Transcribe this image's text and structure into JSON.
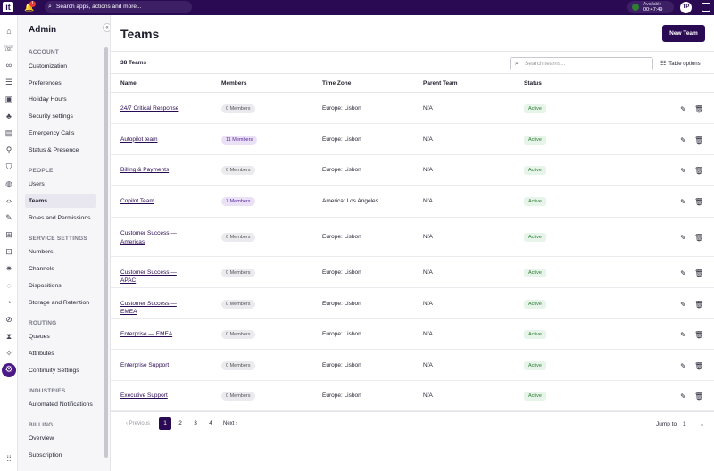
{
  "topbar": {
    "logo": "it",
    "notification_count": "1",
    "search_placeholder": "Search apps, actions and more...",
    "status_label": "Available",
    "status_time": "00:47:49",
    "avatar_initials": "TP"
  },
  "sidebar": {
    "title": "Admin",
    "sections": [
      {
        "label": "ACCOUNT",
        "items": [
          "Customization",
          "Preferences",
          "Holiday Hours",
          "Security settings",
          "Emergency Calls",
          "Status & Presence"
        ]
      },
      {
        "label": "PEOPLE",
        "items": [
          "Users",
          "Teams",
          "Roles and Permissions"
        ]
      },
      {
        "label": "SERVICE SETTINGS",
        "items": [
          "Numbers",
          "Channels",
          "Dispositions",
          "Storage and Retention"
        ]
      },
      {
        "label": "ROUTING",
        "items": [
          "Queues",
          "Attributes",
          "Continuity Settings"
        ]
      },
      {
        "label": "INDUSTRIES",
        "items": [
          "Automated Notifications"
        ]
      },
      {
        "label": "BILLING",
        "items": [
          "Overview",
          "Subscription"
        ]
      }
    ],
    "active_item": "Teams"
  },
  "main": {
    "title": "Teams",
    "new_team_label": "New Team",
    "team_count": "38 Teams",
    "search_placeholder": "Search teams...",
    "table_options_label": "Table options",
    "columns": [
      "Name",
      "Members",
      "Time Zone",
      "Parent Team",
      "Status"
    ],
    "rows": [
      {
        "name": "24/7 Critical Response",
        "members": "0 Members",
        "members_highlight": false,
        "timezone": "Europe: Lisbon",
        "parent": "N/A",
        "status": "Active"
      },
      {
        "name": "Autopilot team",
        "members": "11 Members",
        "members_highlight": true,
        "timezone": "Europe: Lisbon",
        "parent": "N/A",
        "status": "Active"
      },
      {
        "name": "Billing & Payments",
        "members": "0 Members",
        "members_highlight": false,
        "timezone": "Europe: Lisbon",
        "parent": "N/A",
        "status": "Active"
      },
      {
        "name": "Copilot Team",
        "members": "7 Members",
        "members_highlight": true,
        "timezone": "America: Los Angeles",
        "parent": "N/A",
        "status": "Active"
      },
      {
        "name": "Customer Success — Americas",
        "members": "0 Members",
        "members_highlight": false,
        "timezone": "Europe: Lisbon",
        "parent": "N/A",
        "status": "Active"
      },
      {
        "name": "Customer Success — APAC",
        "members": "0 Members",
        "members_highlight": false,
        "timezone": "Europe: Lisbon",
        "parent": "N/A",
        "status": "Active"
      },
      {
        "name": "Customer Success — EMEA",
        "members": "0 Members",
        "members_highlight": false,
        "timezone": "Europe: Lisbon",
        "parent": "N/A",
        "status": "Active"
      },
      {
        "name": "Enterprise — EMEA",
        "members": "0 Members",
        "members_highlight": false,
        "timezone": "Europe: Lisbon",
        "parent": "N/A",
        "status": "Active"
      },
      {
        "name": "Enterprise Support",
        "members": "0 Members",
        "members_highlight": false,
        "timezone": "Europe: Lisbon",
        "parent": "N/A",
        "status": "Active"
      },
      {
        "name": "Executive Support",
        "members": "0 Members",
        "members_highlight": false,
        "timezone": "Europe: Lisbon",
        "parent": "N/A",
        "status": "Active"
      }
    ]
  },
  "pagination": {
    "prev_label": "‹ Previous",
    "pages": [
      "1",
      "2",
      "3",
      "4"
    ],
    "current_page": "1",
    "next_label": "Next ›",
    "jump_label": "Jump to",
    "jump_value": "1"
  },
  "colors": {
    "brand": "#2a0a52",
    "active_status": "#2e7d32",
    "link": "#2a0a52"
  },
  "icons": {
    "rail": [
      "home-icon",
      "contacts-icon",
      "voicemail-icon",
      "list-icon",
      "directory-icon",
      "people-icon",
      "book-icon",
      "flow-icon",
      "shield-icon",
      "globe-icon",
      "code-icon",
      "edit-note-icon",
      "apps-icon",
      "integrations-icon",
      "network-icon",
      "chat-icon",
      "speed-icon",
      "compass-icon",
      "hourglass-icon",
      "sparkle-icon",
      "admin-settings-icon",
      "grid-icon"
    ]
  }
}
